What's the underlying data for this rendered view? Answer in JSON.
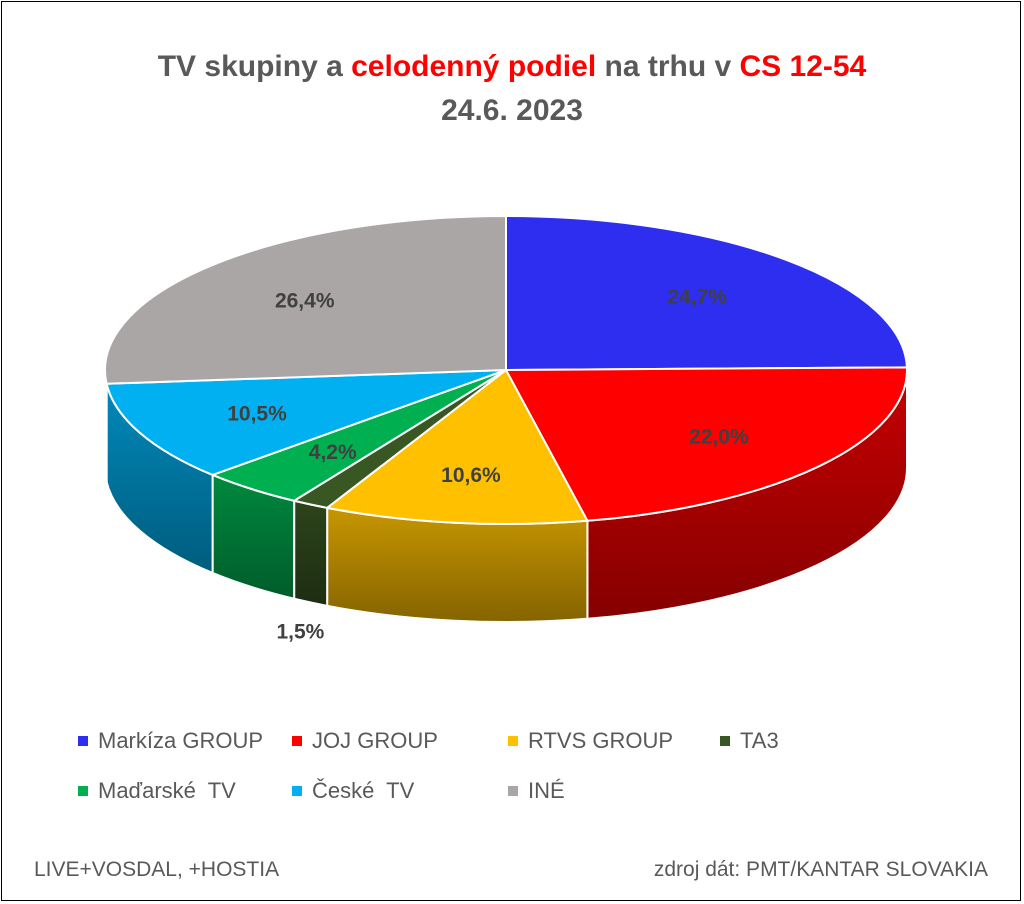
{
  "title": {
    "part1": "TV skupiny a ",
    "part2": "celodenný podiel",
    "part3": " na trhu v ",
    "part4": "CS 12-54",
    "date": "24.6. 2023"
  },
  "chart_data": {
    "type": "pie",
    "subtype": "3d-pie",
    "title": "TV skupiny a celodenný podiel na trhu v CS 12-54",
    "subtitle": "24.6. 2023",
    "labels": [
      "Markíza GROUP",
      "JOJ GROUP",
      "RTVS GROUP",
      "TA3",
      "Maďarské  TV",
      "České  TV",
      "INÉ"
    ],
    "values": [
      24.7,
      22.0,
      10.6,
      1.5,
      4.2,
      10.5,
      26.4
    ],
    "value_labels": [
      "24,7%",
      "22,0%",
      "10,6%",
      "1,5%",
      "4,2%",
      "10,5%",
      "26,4%"
    ],
    "colors": [
      "#2e2ef0",
      "#ff0000",
      "#ffc000",
      "#385723",
      "#00b050",
      "#00b0f0",
      "#aaa6a6"
    ],
    "legend_position": "bottom"
  },
  "footer": {
    "left": "LIVE+VOSDAL, +HOSTIA",
    "right": "zdroj dát: PMT/KANTAR SLOVAKIA"
  }
}
